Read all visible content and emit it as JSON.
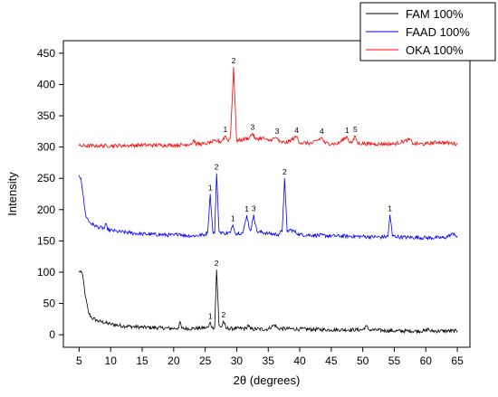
{
  "chart_data": {
    "type": "line",
    "xlabel": "2θ (degrees)",
    "ylabel": "Intensity",
    "xlim": [
      2.5,
      67
    ],
    "ylim": [
      -20,
      470
    ],
    "xticks": [
      5,
      10,
      15,
      20,
      25,
      30,
      35,
      40,
      45,
      50,
      55,
      60,
      65
    ],
    "yticks": [
      0,
      50,
      100,
      150,
      200,
      250,
      300,
      350,
      400,
      450
    ],
    "grid": false,
    "legend_position": "top-right",
    "series": [
      {
        "name": "FAM 100%",
        "color": "#000000",
        "points": [
          [
            5,
            100
          ],
          [
            5.3,
            102
          ],
          [
            5.6,
            92
          ],
          [
            6,
            60
          ],
          [
            6.5,
            35
          ],
          [
            7,
            27
          ],
          [
            8,
            22
          ],
          [
            10,
            17
          ],
          [
            12,
            14
          ],
          [
            15,
            12
          ],
          [
            18,
            11
          ],
          [
            20,
            10
          ],
          [
            20.8,
            11
          ],
          [
            21,
            21
          ],
          [
            21.3,
            10
          ],
          [
            23,
            10
          ],
          [
            25,
            11
          ],
          [
            25.5,
            12
          ],
          [
            25.8,
            20
          ],
          [
            26.1,
            11
          ],
          [
            26.5,
            12
          ],
          [
            26.8,
            104
          ],
          [
            27.2,
            15
          ],
          [
            27.6,
            12
          ],
          [
            27.9,
            22
          ],
          [
            28.3,
            10
          ],
          [
            30,
            10
          ],
          [
            31.5,
            10
          ],
          [
            31.8,
            16
          ],
          [
            32.2,
            9
          ],
          [
            35,
            9
          ],
          [
            36,
            16
          ],
          [
            36.5,
            10
          ],
          [
            40,
            9
          ],
          [
            45,
            8
          ],
          [
            50,
            8
          ],
          [
            50.5,
            14
          ],
          [
            51,
            8
          ],
          [
            55,
            6
          ],
          [
            60,
            6
          ],
          [
            60.3,
            10
          ],
          [
            60.7,
            6
          ],
          [
            65,
            6
          ]
        ],
        "peak_labels": [
          {
            "x": 25.8,
            "y": 20,
            "text": "1"
          },
          {
            "x": 26.8,
            "y": 104,
            "text": "2"
          },
          {
            "x": 27.9,
            "y": 22,
            "text": "2"
          }
        ]
      },
      {
        "name": "FAAD 100%",
        "color": "#0000ff",
        "points": [
          [
            5,
            255
          ],
          [
            5.3,
            250
          ],
          [
            5.6,
            225
          ],
          [
            6,
            192
          ],
          [
            6.5,
            182
          ],
          [
            7,
            177
          ],
          [
            8,
            172
          ],
          [
            9,
            170
          ],
          [
            9.2,
            178
          ],
          [
            9.5,
            168
          ],
          [
            11,
            165
          ],
          [
            13,
            163
          ],
          [
            15,
            161
          ],
          [
            18,
            160
          ],
          [
            20,
            159
          ],
          [
            21,
            162
          ],
          [
            21.4,
            159
          ],
          [
            23,
            158
          ],
          [
            25,
            160
          ],
          [
            25.4,
            165
          ],
          [
            25.8,
            225
          ],
          [
            26.2,
            165
          ],
          [
            26.5,
            163
          ],
          [
            26.8,
            258
          ],
          [
            27.2,
            165
          ],
          [
            28,
            162
          ],
          [
            29,
            163
          ],
          [
            29.4,
            176
          ],
          [
            29.8,
            162
          ],
          [
            31,
            163
          ],
          [
            31.6,
            191
          ],
          [
            32,
            170
          ],
          [
            32.3,
            168
          ],
          [
            32.7,
            192
          ],
          [
            33.2,
            165
          ],
          [
            35,
            162
          ],
          [
            36.5,
            160
          ],
          [
            37.2,
            165
          ],
          [
            37.6,
            250
          ],
          [
            38,
            165
          ],
          [
            38.6,
            168
          ],
          [
            40,
            160
          ],
          [
            45,
            158
          ],
          [
            50,
            157
          ],
          [
            53,
            156
          ],
          [
            54,
            157
          ],
          [
            54.3,
            192
          ],
          [
            54.7,
            158
          ],
          [
            56,
            156
          ],
          [
            60,
            155
          ],
          [
            63,
            155
          ],
          [
            64.5,
            162
          ],
          [
            65,
            155
          ]
        ],
        "peak_labels": [
          {
            "x": 25.8,
            "y": 225,
            "text": "1"
          },
          {
            "x": 26.8,
            "y": 258,
            "text": "2"
          },
          {
            "x": 29.4,
            "y": 176,
            "text": "1"
          },
          {
            "x": 31.6,
            "y": 191,
            "text": "1"
          },
          {
            "x": 32.7,
            "y": 192,
            "text": "3"
          },
          {
            "x": 37.6,
            "y": 250,
            "text": "2"
          },
          {
            "x": 54.3,
            "y": 192,
            "text": "1"
          }
        ]
      },
      {
        "name": "OKA 100%",
        "color": "#ff0000",
        "points": [
          [
            5,
            302
          ],
          [
            8,
            302
          ],
          [
            10,
            302
          ],
          [
            15,
            303
          ],
          [
            20,
            303
          ],
          [
            22,
            304
          ],
          [
            23,
            306
          ],
          [
            23.2,
            312
          ],
          [
            23.5,
            305
          ],
          [
            25,
            305
          ],
          [
            26,
            308
          ],
          [
            27,
            310
          ],
          [
            27.5,
            308
          ],
          [
            28.2,
            318
          ],
          [
            28.6,
            310
          ],
          [
            29,
            315
          ],
          [
            29.5,
            428
          ],
          [
            30,
            310
          ],
          [
            31,
            312
          ],
          [
            32,
            315
          ],
          [
            32.5,
            322
          ],
          [
            33,
            312
          ],
          [
            34,
            315
          ],
          [
            35,
            310
          ],
          [
            36,
            314
          ],
          [
            36.4,
            315
          ],
          [
            36.8,
            308
          ],
          [
            38,
            307
          ],
          [
            39.5,
            317
          ],
          [
            40,
            307
          ],
          [
            42,
            306
          ],
          [
            43.5,
            315
          ],
          [
            44,
            306
          ],
          [
            46,
            305
          ],
          [
            47.5,
            317
          ],
          [
            48,
            307
          ],
          [
            48.4,
            308
          ],
          [
            48.8,
            318
          ],
          [
            49.2,
            306
          ],
          [
            52,
            305
          ],
          [
            55,
            305
          ],
          [
            57.5,
            312
          ],
          [
            58,
            305
          ],
          [
            60,
            305
          ],
          [
            62,
            308
          ],
          [
            64,
            306
          ],
          [
            65,
            305
          ]
        ],
        "peak_labels": [
          {
            "x": 28.2,
            "y": 318,
            "text": "1"
          },
          {
            "x": 29.5,
            "y": 428,
            "text": "2"
          },
          {
            "x": 32.5,
            "y": 322,
            "text": "3"
          },
          {
            "x": 36.4,
            "y": 315,
            "text": "3"
          },
          {
            "x": 39.5,
            "y": 317,
            "text": "4"
          },
          {
            "x": 43.5,
            "y": 315,
            "text": "4"
          },
          {
            "x": 47.5,
            "y": 317,
            "text": "1"
          },
          {
            "x": 48.8,
            "y": 318,
            "text": "5"
          }
        ]
      }
    ]
  }
}
